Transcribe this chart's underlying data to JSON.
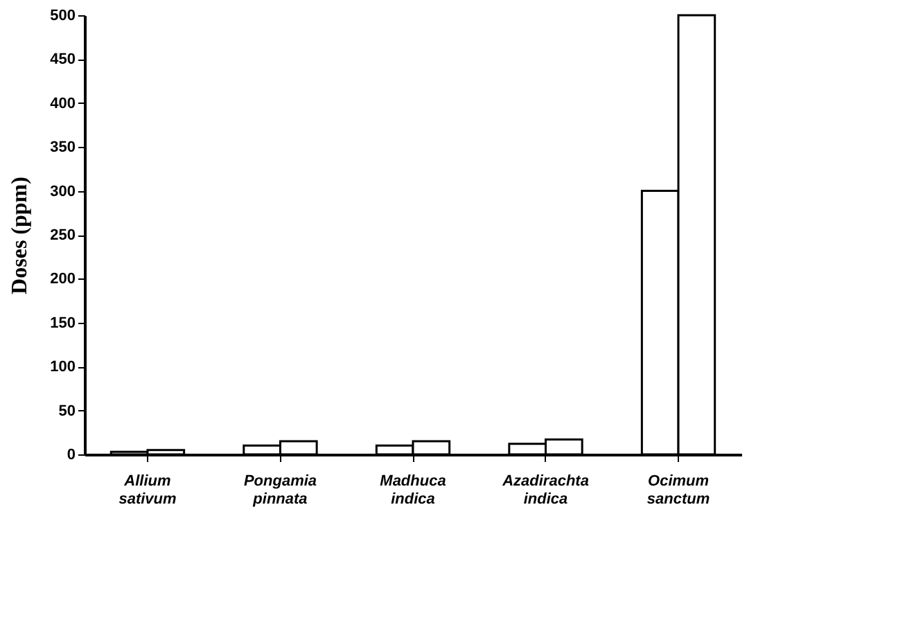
{
  "chart_data": {
    "type": "bar",
    "ylabel": "Doses (ppm)",
    "categories": [
      "Allium sativum",
      "Pongamia pinnata",
      "Madhuca indica",
      "Azadirachta indica",
      "Ocimum sanctum"
    ],
    "series": [
      {
        "color": "#ffffff",
        "values": [
          3,
          10,
          10,
          12,
          300
        ]
      },
      {
        "color": "#ffffff",
        "values": [
          5,
          15,
          15,
          17,
          500
        ]
      }
    ],
    "ylim": [
      0,
      500
    ],
    "yticks": [
      0,
      50,
      100,
      150,
      200,
      250,
      300,
      350,
      400,
      450,
      500
    ],
    "grid": false,
    "legend": false
  }
}
